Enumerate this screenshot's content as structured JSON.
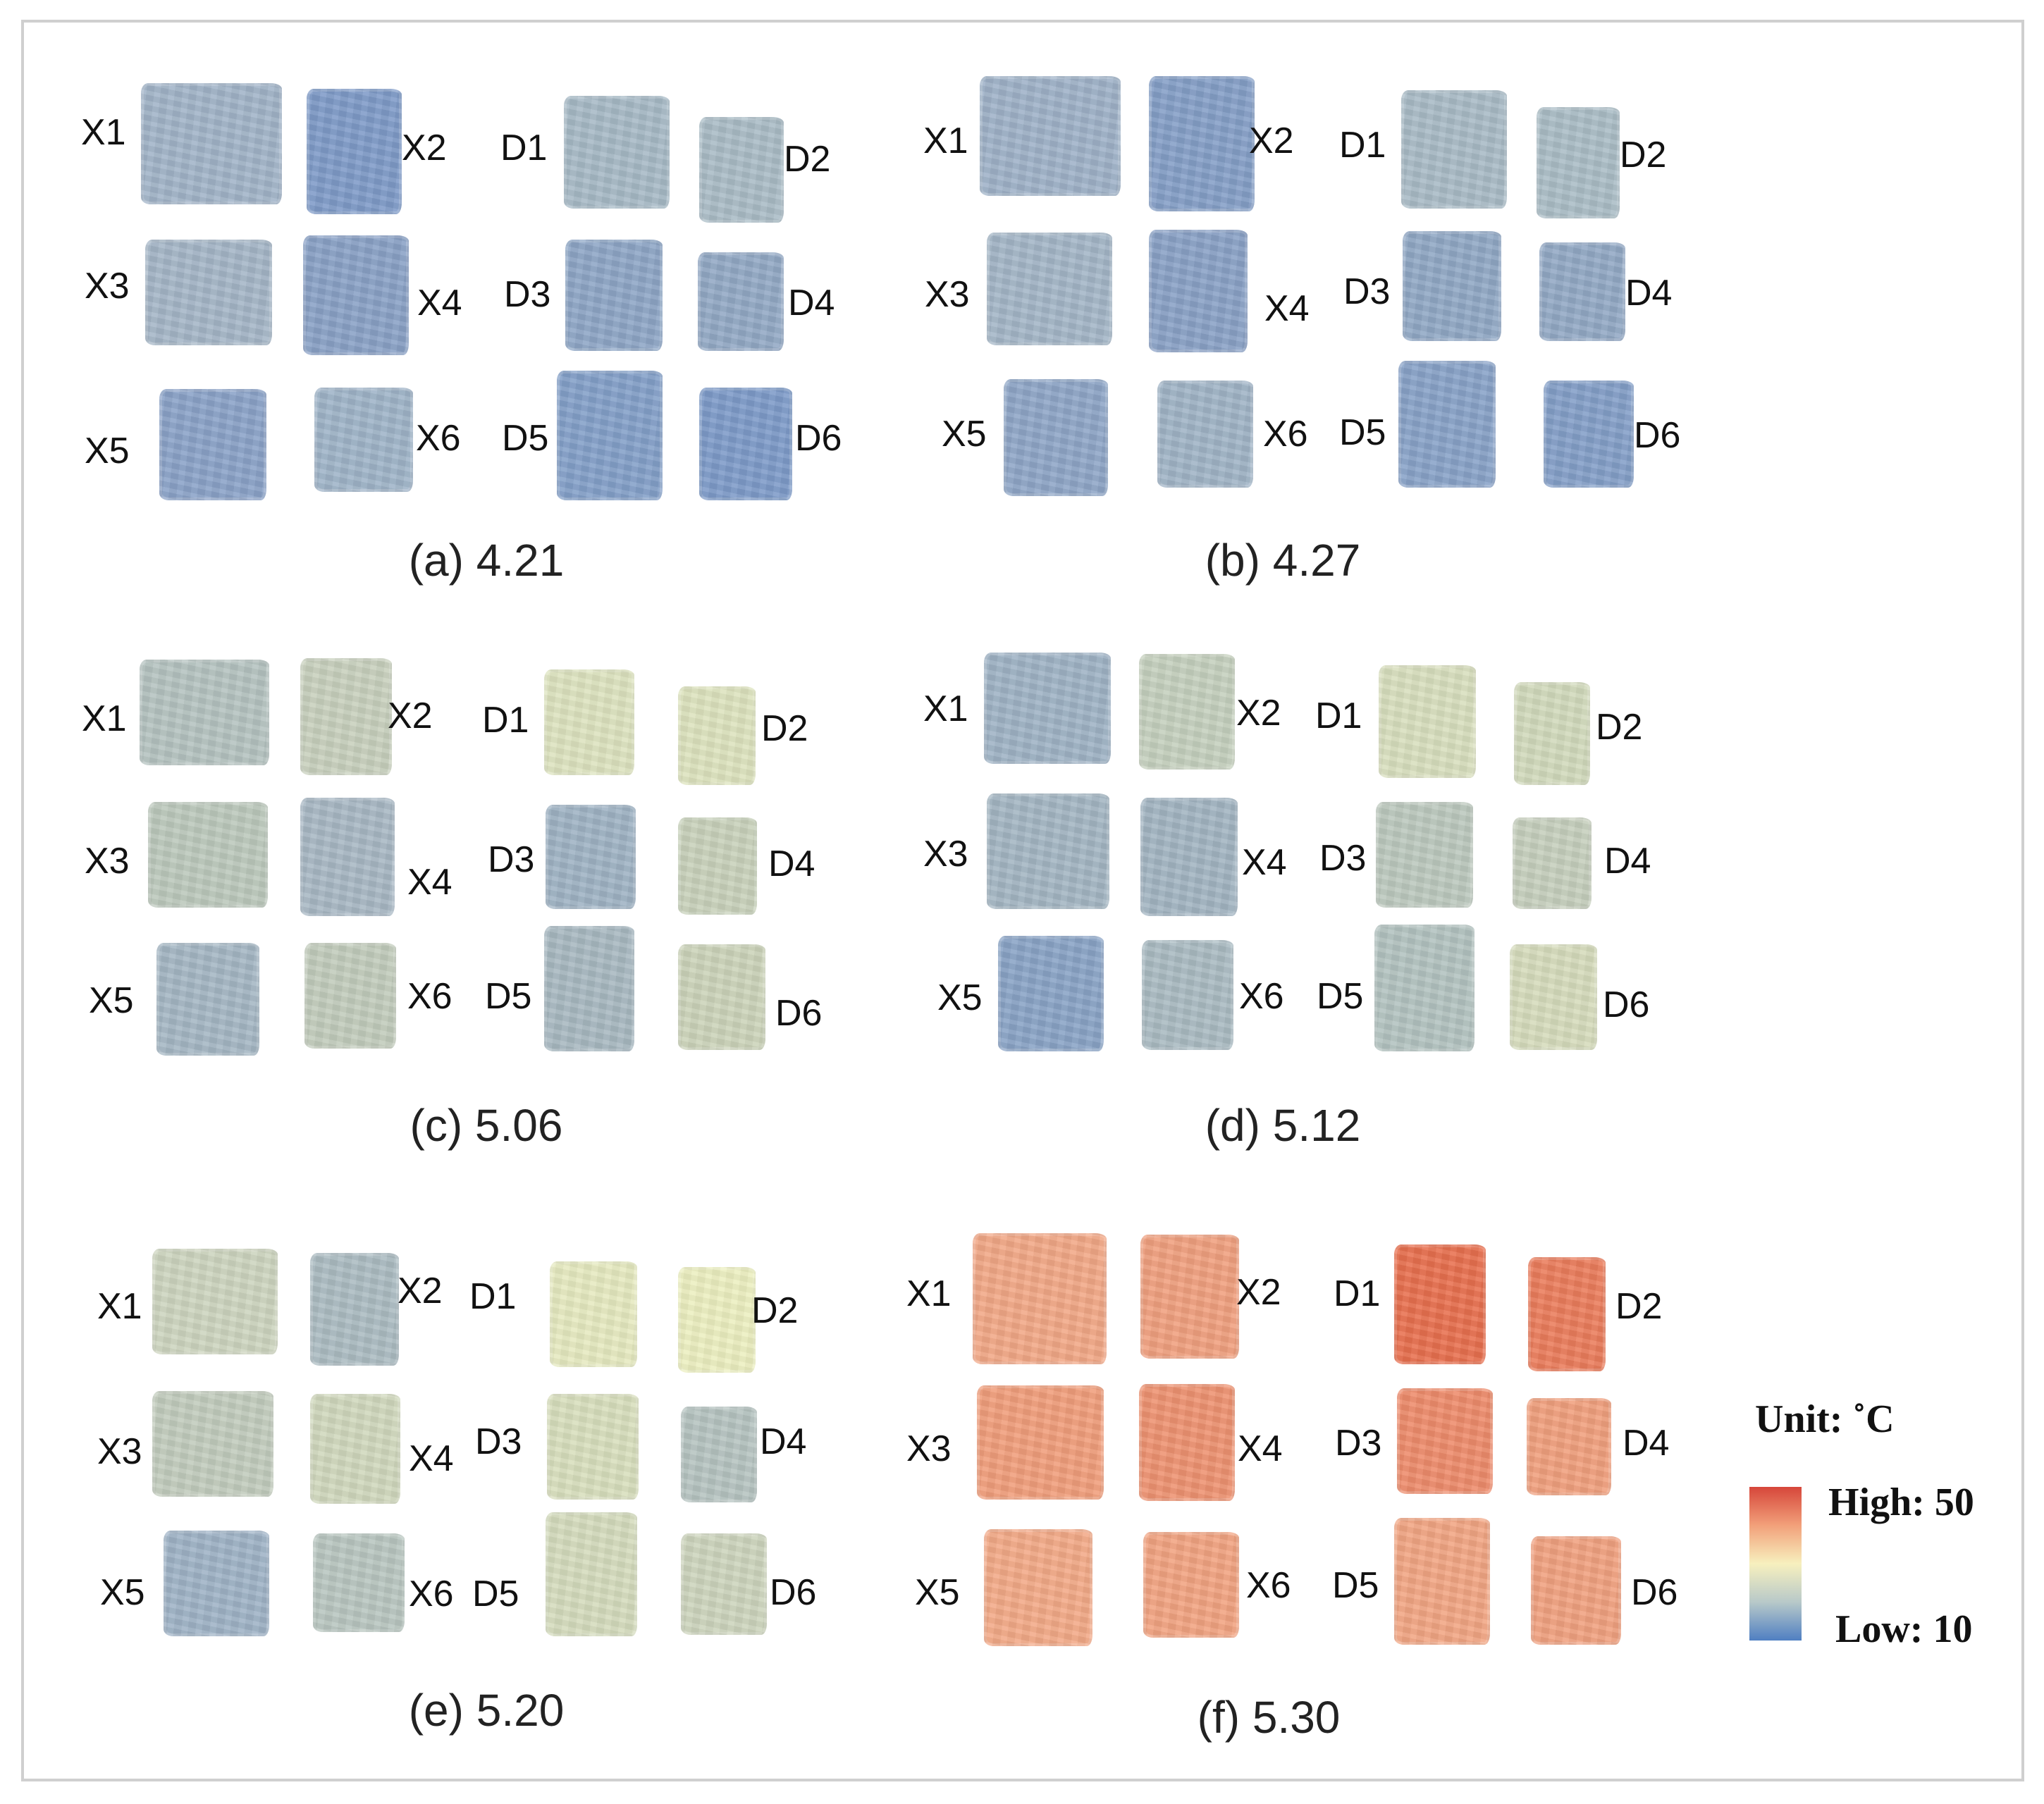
{
  "panels": [
    {
      "id": "a",
      "caption": "(a) 4.21",
      "fields": {
        "X1": "#a2b4c8",
        "X2": "#7f9bc8",
        "X3": "#a5b6c7",
        "X4": "#8aa2c6",
        "X5": "#8ba3c8",
        "X6": "#9fb4c8",
        "D1": "#a7bac6",
        "D2": "#aabcc6",
        "D3": "#8ea6c6",
        "D4": "#93a9c5",
        "D5": "#84a0c9",
        "D6": "#7e9bc9"
      }
    },
    {
      "id": "b",
      "caption": "(b) 4.27",
      "fields": {
        "X1": "#9fb2c8",
        "X2": "#859fc7",
        "X3": "#a4b6c7",
        "X4": "#8aa2c6",
        "X5": "#8fa6c7",
        "X6": "#a0b4c6",
        "D1": "#a9bbc6",
        "D2": "#abbdc6",
        "D3": "#91a8c5",
        "D4": "#93a9c5",
        "D5": "#89a3c8",
        "D6": "#849fc8"
      }
    },
    {
      "id": "c",
      "caption": "(c)  5.06",
      "fields": {
        "X1": "#b5c3c0",
        "X2": "#c8d0bd",
        "X3": "#bcc9bc",
        "X4": "#a8b8c4",
        "X5": "#a5b7c4",
        "X6": "#c2ccbc",
        "D1": "#dde3bf",
        "D2": "#dde3be",
        "D3": "#9fb3c4",
        "D4": "#c9d2bb",
        "D5": "#a8b9c1",
        "D6": "#ccd4ba"
      }
    },
    {
      "id": "d",
      "caption": "(d) 5.12",
      "fields": {
        "X1": "#9fb3c5",
        "X2": "#c5d0be",
        "X3": "#a4b6c3",
        "X4": "#a3b5c2",
        "X5": "#8aa4c6",
        "X6": "#aabbc2",
        "D1": "#d8dfbe",
        "D2": "#d2dabc",
        "D3": "#bcc9be",
        "D4": "#c6cfbd",
        "D5": "#b3c3c0",
        "D6": "#d6dcbc"
      }
    },
    {
      "id": "e",
      "caption": "(e) 5.20",
      "fields": {
        "X1": "#cdd5bf",
        "X2": "#acbcc2",
        "X3": "#c2ccbd",
        "X4": "#d1d8bd",
        "X5": "#9fb3c6",
        "X6": "#b9c6c0",
        "D1": "#e6eac0",
        "D2": "#ecefc0",
        "D3": "#d8dfbd",
        "D4": "#b6c4c1",
        "D5": "#d5dcbd",
        "D6": "#cdd5bd"
      }
    },
    {
      "id": "f",
      "caption": "(f) 5.30",
      "fields": {
        "X1": "#f2a887",
        "X2": "#f0a07f",
        "X3": "#f19e7c",
        "X4": "#ee9372",
        "X5": "#f3aa88",
        "X6": "#f2a482",
        "D1": "#e8704f",
        "D2": "#eb7d5c",
        "D3": "#ee8c6c",
        "D4": "#f1a07e",
        "D5": "#f2a684",
        "D6": "#f1a280"
      }
    }
  ],
  "legend": {
    "unit": "Unit: ˚C",
    "high": "High: 50",
    "low": "Low: 10",
    "gradient_colors": [
      "#d6463a",
      "#f2a07a",
      "#f7f0be",
      "#b8c9c9",
      "#4f7fc2"
    ]
  }
}
